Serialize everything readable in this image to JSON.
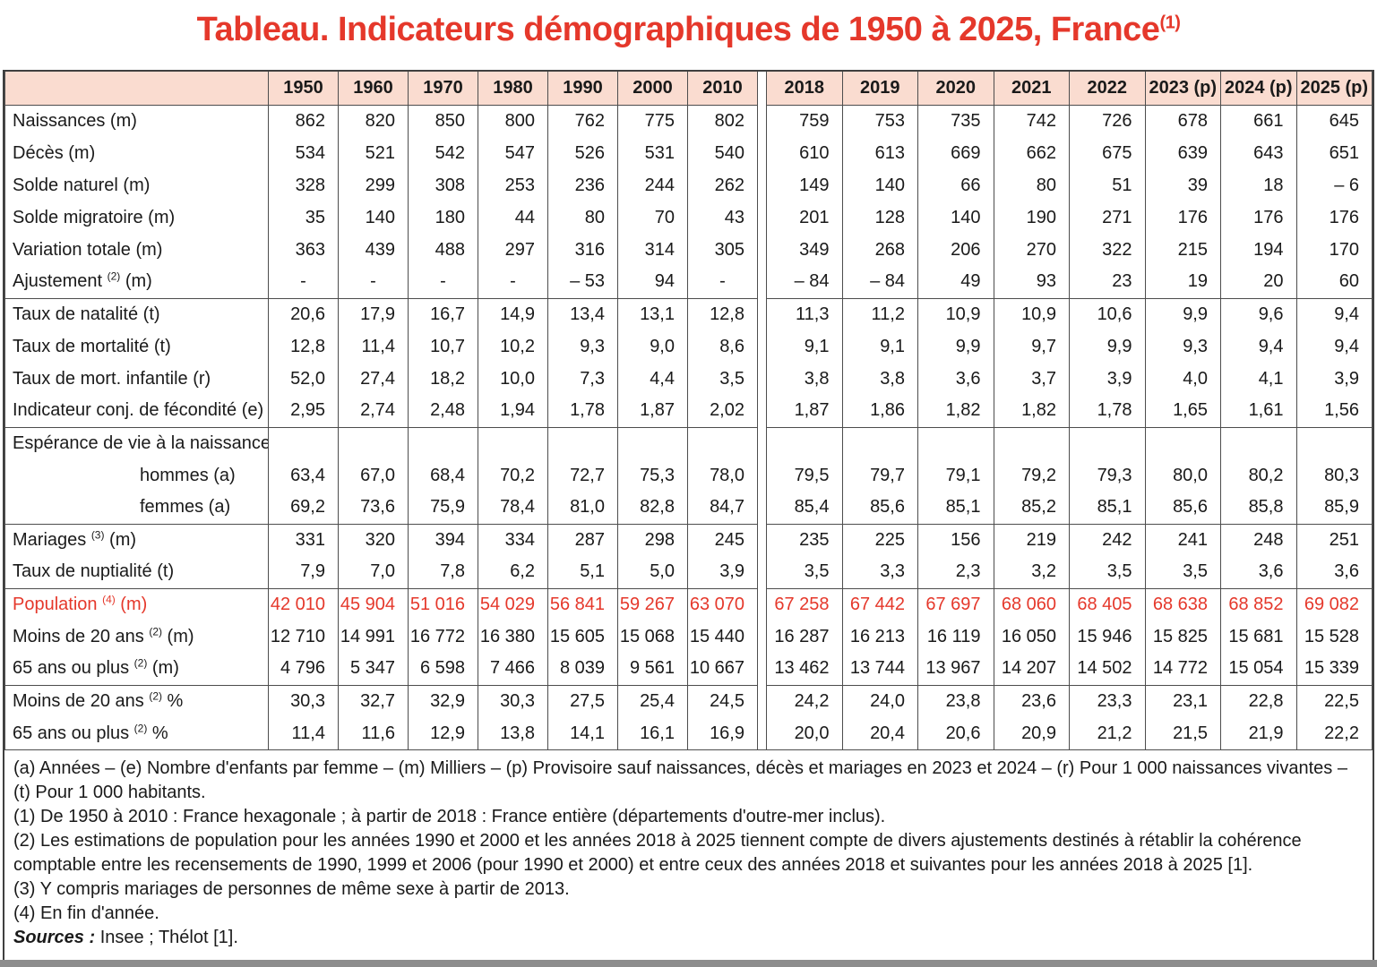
{
  "title": {
    "text": "Tableau. Indicateurs démographiques de 1950 à 2025, France",
    "sup": "(1)"
  },
  "colors": {
    "accent_red": "#e5382b",
    "header_bg": "#fadcd0",
    "grid_line": "#4d4d4d",
    "bottom_bar": "#8d8d8d"
  },
  "table": {
    "years_left": [
      "1950",
      "1960",
      "1970",
      "1980",
      "1990",
      "2000",
      "2010"
    ],
    "years_right": [
      "2018",
      "2019",
      "2020",
      "2021",
      "2022",
      "2023 (p)",
      "2024 (p)",
      "2025 (p)"
    ],
    "rows": [
      {
        "label": "Naissances (m)",
        "sup": "",
        "suffix": "",
        "indent": false,
        "red": false,
        "group_start": false,
        "left": [
          "862",
          "820",
          "850",
          "800",
          "762",
          "775",
          "802"
        ],
        "right": [
          "759",
          "753",
          "735",
          "742",
          "726",
          "678",
          "661",
          "645"
        ]
      },
      {
        "label": "Décès (m)",
        "sup": "",
        "suffix": "",
        "indent": false,
        "red": false,
        "group_start": false,
        "left": [
          "534",
          "521",
          "542",
          "547",
          "526",
          "531",
          "540"
        ],
        "right": [
          "610",
          "613",
          "669",
          "662",
          "675",
          "639",
          "643",
          "651"
        ]
      },
      {
        "label": "Solde naturel (m)",
        "sup": "",
        "suffix": "",
        "indent": false,
        "red": false,
        "group_start": false,
        "left": [
          "328",
          "299",
          "308",
          "253",
          "236",
          "244",
          "262"
        ],
        "right": [
          "149",
          "140",
          "66",
          "80",
          "51",
          "39",
          "18",
          "– 6"
        ]
      },
      {
        "label": "Solde migratoire (m)",
        "sup": "",
        "suffix": "",
        "indent": false,
        "red": false,
        "group_start": false,
        "left": [
          "35",
          "140",
          "180",
          "44",
          "80",
          "70",
          "43"
        ],
        "right": [
          "201",
          "128",
          "140",
          "190",
          "271",
          "176",
          "176",
          "176"
        ]
      },
      {
        "label": "Variation totale (m)",
        "sup": "",
        "suffix": "",
        "indent": false,
        "red": false,
        "group_start": false,
        "left": [
          "363",
          "439",
          "488",
          "297",
          "316",
          "314",
          "305"
        ],
        "right": [
          "349",
          "268",
          "206",
          "270",
          "322",
          "215",
          "194",
          "170"
        ]
      },
      {
        "label": "Ajustement ",
        "sup": "(2)",
        "suffix": " (m)",
        "indent": false,
        "red": false,
        "group_start": false,
        "left": [
          "-",
          "-",
          "-",
          "-",
          "– 53",
          "94",
          "-"
        ],
        "right": [
          "– 84",
          "– 84",
          "49",
          "93",
          "23",
          "19",
          "20",
          "60"
        ]
      },
      {
        "label": "Taux de natalité (t)",
        "sup": "",
        "suffix": "",
        "indent": false,
        "red": false,
        "group_start": true,
        "left": [
          "20,6",
          "17,9",
          "16,7",
          "14,9",
          "13,4",
          "13,1",
          "12,8"
        ],
        "right": [
          "11,3",
          "11,2",
          "10,9",
          "10,9",
          "10,6",
          "9,9",
          "9,6",
          "9,4"
        ]
      },
      {
        "label": "Taux de mortalité (t)",
        "sup": "",
        "suffix": "",
        "indent": false,
        "red": false,
        "group_start": false,
        "left": [
          "12,8",
          "11,4",
          "10,7",
          "10,2",
          "9,3",
          "9,0",
          "8,6"
        ],
        "right": [
          "9,1",
          "9,1",
          "9,9",
          "9,7",
          "9,9",
          "9,3",
          "9,4",
          "9,4"
        ]
      },
      {
        "label": "Taux de mort. infantile (r)",
        "sup": "",
        "suffix": "",
        "indent": false,
        "red": false,
        "group_start": false,
        "left": [
          "52,0",
          "27,4",
          "18,2",
          "10,0",
          "7,3",
          "4,4",
          "3,5"
        ],
        "right": [
          "3,8",
          "3,8",
          "3,6",
          "3,7",
          "3,9",
          "4,0",
          "4,1",
          "3,9"
        ]
      },
      {
        "label": "Indicateur conj. de fécondité (e)",
        "sup": "",
        "suffix": "",
        "indent": false,
        "red": false,
        "group_start": false,
        "left": [
          "2,95",
          "2,74",
          "2,48",
          "1,94",
          "1,78",
          "1,87",
          "2,02"
        ],
        "right": [
          "1,87",
          "1,86",
          "1,82",
          "1,82",
          "1,78",
          "1,65",
          "1,61",
          "1,56"
        ]
      },
      {
        "label": "Espérance de vie à la naissance",
        "sup": "",
        "suffix": "",
        "indent": false,
        "red": false,
        "group_start": true,
        "left": [
          "",
          "",
          "",
          "",
          "",
          "",
          ""
        ],
        "right": [
          "",
          "",
          "",
          "",
          "",
          "",
          "",
          ""
        ]
      },
      {
        "label": "hommes (a)",
        "sup": "",
        "suffix": "",
        "indent": true,
        "red": false,
        "group_start": false,
        "left": [
          "63,4",
          "67,0",
          "68,4",
          "70,2",
          "72,7",
          "75,3",
          "78,0"
        ],
        "right": [
          "79,5",
          "79,7",
          "79,1",
          "79,2",
          "79,3",
          "80,0",
          "80,2",
          "80,3"
        ]
      },
      {
        "label": "femmes (a)",
        "sup": "",
        "suffix": "",
        "indent": true,
        "red": false,
        "group_start": false,
        "left": [
          "69,2",
          "73,6",
          "75,9",
          "78,4",
          "81,0",
          "82,8",
          "84,7"
        ],
        "right": [
          "85,4",
          "85,6",
          "85,1",
          "85,2",
          "85,1",
          "85,6",
          "85,8",
          "85,9"
        ]
      },
      {
        "label": "Mariages ",
        "sup": "(3)",
        "suffix": " (m)",
        "indent": false,
        "red": false,
        "group_start": true,
        "left": [
          "331",
          "320",
          "394",
          "334",
          "287",
          "298",
          "245"
        ],
        "right": [
          "235",
          "225",
          "156",
          "219",
          "242",
          "241",
          "248",
          "251"
        ]
      },
      {
        "label": "Taux de nuptialité (t)",
        "sup": "",
        "suffix": "",
        "indent": false,
        "red": false,
        "group_start": false,
        "left": [
          "7,9",
          "7,0",
          "7,8",
          "6,2",
          "5,1",
          "5,0",
          "3,9"
        ],
        "right": [
          "3,5",
          "3,3",
          "2,3",
          "3,2",
          "3,5",
          "3,5",
          "3,6",
          "3,6"
        ]
      },
      {
        "label": "Population ",
        "sup": "(4)",
        "suffix": " (m)",
        "indent": false,
        "red": true,
        "group_start": true,
        "left": [
          "42 010",
          "45 904",
          "51 016",
          "54 029",
          "56 841",
          "59 267",
          "63 070"
        ],
        "right": [
          "67 258",
          "67 442",
          "67 697",
          "68 060",
          "68 405",
          "68 638",
          "68 852",
          "69 082"
        ]
      },
      {
        "label": "Moins de 20 ans ",
        "sup": "(2)",
        "suffix": " (m)",
        "indent": false,
        "red": false,
        "group_start": false,
        "left": [
          "12 710",
          "14 991",
          "16 772",
          "16 380",
          "15 605",
          "15 068",
          "15 440"
        ],
        "right": [
          "16 287",
          "16 213",
          "16 119",
          "16 050",
          "15 946",
          "15 825",
          "15 681",
          "15 528"
        ]
      },
      {
        "label": "65 ans ou plus ",
        "sup": "(2)",
        "suffix": " (m)",
        "indent": false,
        "red": false,
        "group_start": false,
        "left": [
          "4 796",
          "5 347",
          "6 598",
          "7 466",
          "8 039",
          "9 561",
          "10 667"
        ],
        "right": [
          "13 462",
          "13 744",
          "13 967",
          "14 207",
          "14 502",
          "14 772",
          "15 054",
          "15 339"
        ]
      },
      {
        "label": "Moins de 20 ans ",
        "sup": "(2)",
        "suffix": " %",
        "indent": false,
        "red": false,
        "group_start": true,
        "left": [
          "30,3",
          "32,7",
          "32,9",
          "30,3",
          "27,5",
          "25,4",
          "24,5"
        ],
        "right": [
          "24,2",
          "24,0",
          "23,8",
          "23,6",
          "23,3",
          "23,1",
          "22,8",
          "22,5"
        ]
      },
      {
        "label": "65 ans ou plus ",
        "sup": "(2)",
        "suffix": " %",
        "indent": false,
        "red": false,
        "group_start": false,
        "left": [
          "11,4",
          "11,6",
          "12,9",
          "13,8",
          "14,1",
          "16,1",
          "16,9"
        ],
        "right": [
          "20,0",
          "20,4",
          "20,6",
          "20,9",
          "21,2",
          "21,5",
          "21,9",
          "22,2"
        ]
      }
    ]
  },
  "footnotes": [
    "(a) Années – (e) Nombre d'enfants par femme – (m) Milliers – (p) Provisoire sauf naissances, décès et mariages en 2023 et 2024 – (r) Pour 1 000 naissances vivantes – (t) Pour 1 000 habitants.",
    "(1) De 1950 à 2010 : France hexagonale ; à partir de 2018 : France entière (départements d'outre-mer inclus).",
    "(2) Les estimations de population pour les années 1990 et 2000 et les années 2018 à 2025 tiennent compte de divers ajustements destinés à rétablir la cohérence comptable entre les recensements de 1990, 1999 et 2006 (pour 1990 et 2000) et entre ceux des années 2018 et suivantes pour les années 2018 à 2025 [1].",
    "(3) Y compris mariages de personnes de même sexe à partir de 2013.",
    "(4) En fin d'année."
  ],
  "sources": {
    "label": "Sources : ",
    "text": "Insee ; Thélot [1]."
  }
}
